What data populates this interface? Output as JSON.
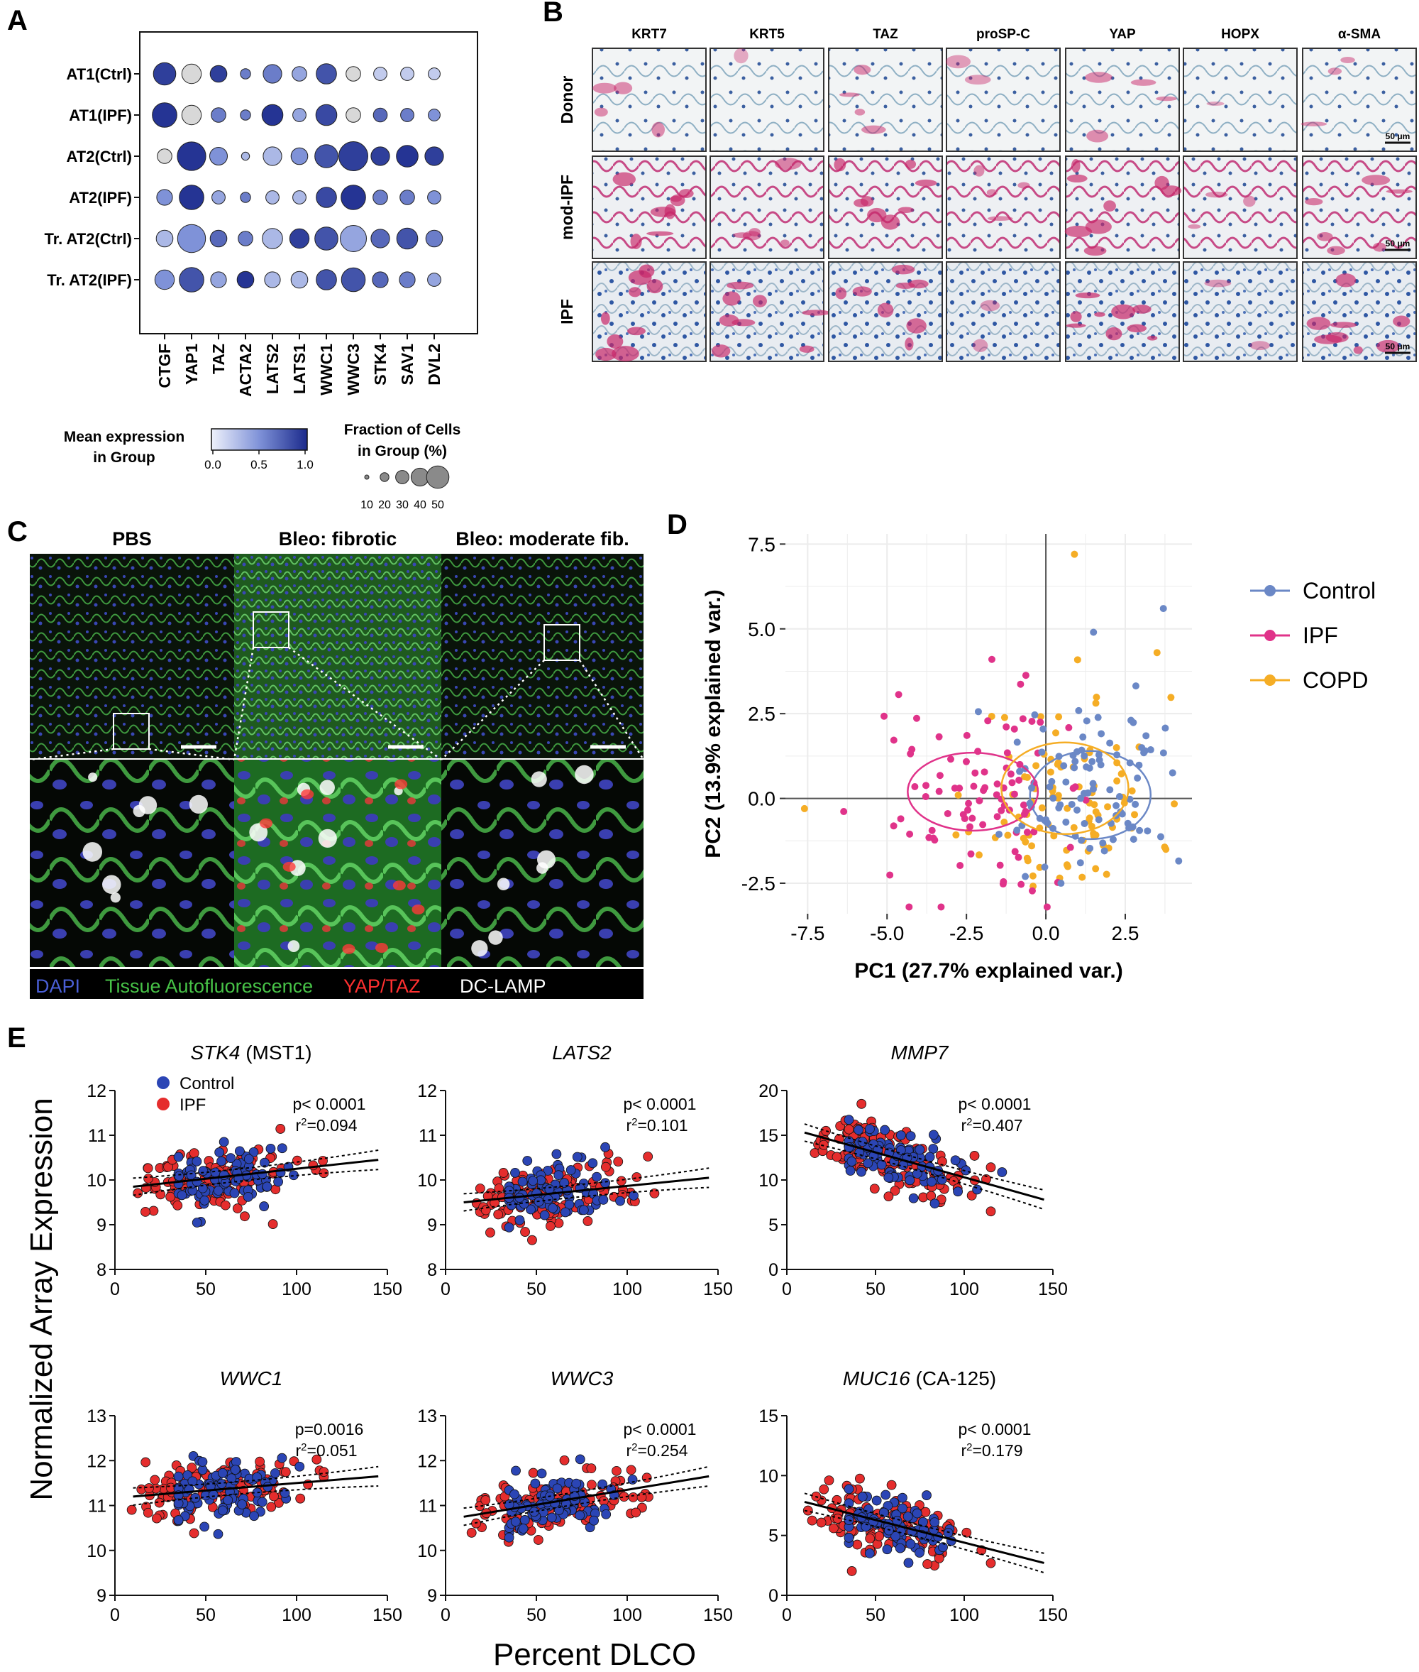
{
  "panels": {
    "a": {
      "label": "A",
      "groups": [
        "AT1(Ctrl)",
        "AT1(IPF)",
        "AT2(Ctrl)",
        "AT2(IPF)",
        "Tr. AT2(Ctrl)",
        "Tr. AT2(IPF)"
      ],
      "genes": [
        "CTGF",
        "YAP1",
        "TAZ",
        "ACTA2",
        "LATS2",
        "LATS1",
        "WWC1",
        "WWC3",
        "STK4",
        "SAV1",
        "DVL2"
      ],
      "mean_expression": [
        [
          0.9,
          0.1,
          0.9,
          0.6,
          0.6,
          0.4,
          0.8,
          0.1,
          0.2,
          0.2,
          0.2
        ],
        [
          0.95,
          0.1,
          0.6,
          0.6,
          0.95,
          0.4,
          0.85,
          0.1,
          0.7,
          0.6,
          0.5
        ],
        [
          0.1,
          0.95,
          0.5,
          0.3,
          0.3,
          0.5,
          0.8,
          0.9,
          0.9,
          0.95,
          0.9
        ],
        [
          0.5,
          0.95,
          0.4,
          0.6,
          0.3,
          0.3,
          0.85,
          0.95,
          0.6,
          0.6,
          0.5
        ],
        [
          0.3,
          0.5,
          0.7,
          0.6,
          0.3,
          0.9,
          0.8,
          0.4,
          0.7,
          0.8,
          0.6
        ],
        [
          0.5,
          0.8,
          0.4,
          0.95,
          0.3,
          0.3,
          0.8,
          0.8,
          0.7,
          0.6,
          0.4
        ]
      ],
      "fraction_pct": [
        [
          28,
          20,
          14,
          4,
          18,
          10,
          22,
          10,
          8,
          8,
          6
        ],
        [
          34,
          20,
          10,
          4,
          24,
          8,
          24,
          10,
          9,
          8,
          6
        ],
        [
          10,
          48,
          16,
          2,
          18,
          14,
          30,
          50,
          18,
          26,
          18
        ],
        [
          12,
          34,
          8,
          4,
          8,
          8,
          22,
          34,
          10,
          10,
          8
        ],
        [
          14,
          46,
          14,
          10,
          22,
          20,
          30,
          40,
          18,
          24,
          14
        ],
        [
          20,
          34,
          12,
          14,
          12,
          14,
          22,
          32,
          12,
          12,
          8
        ]
      ],
      "colorbar_title": [
        "Mean expression",
        "in Group"
      ],
      "colorbar_ticks": [
        "0.0",
        "0.5",
        "1.0"
      ],
      "size_legend_title": [
        "Fraction of Cells",
        "in Group (%)"
      ],
      "size_legend_ticks": [
        "10",
        "20",
        "30",
        "40",
        "50"
      ]
    },
    "b": {
      "label": "B",
      "stains": [
        "KRT7",
        "KRT5",
        "TAZ",
        "proSP-C",
        "YAP",
        "HOPX",
        "α-SMA"
      ],
      "rows": [
        "Donor",
        "mod-IPF",
        "IPF"
      ],
      "scale_bar": "50 μm"
    },
    "c": {
      "label": "C",
      "columns": [
        "PBS",
        "Bleo: fibrotic",
        "Bleo: moderate fib."
      ],
      "legend": [
        {
          "text": "DAPI",
          "color": "#4a5fd6"
        },
        {
          "text": "Tissue Autofluorescence",
          "color": "#47c247"
        },
        {
          "text": "YAP/TAZ",
          "color": "#ff3030"
        },
        {
          "text": "DC-LAMP",
          "color": "#ffffff"
        }
      ]
    },
    "d": {
      "label": "D",
      "xlabel": "PC1 (27.7% explained var.)",
      "ylabel": "PC2 (13.9% explained var.)",
      "xticks": [
        "-7.5",
        "-5.0",
        "-2.5",
        "0.0",
        "2.5"
      ],
      "yticks": [
        "-2.5",
        "0.0",
        "2.5",
        "5.0",
        "7.5"
      ],
      "legend": [
        {
          "name": "Control",
          "color": "#6b88c6"
        },
        {
          "name": "IPF",
          "color": "#e0338a"
        },
        {
          "name": "COPD",
          "color": "#f5ad25"
        }
      ]
    },
    "e": {
      "label": "E",
      "shared_ylabel": "Normalized Array Expression",
      "shared_xlabel": "Percent  DLCO",
      "legend": [
        {
          "name": "Control",
          "color": "#2b45b5"
        },
        {
          "name": "IPF",
          "color": "#e52d2d"
        }
      ],
      "subplots": [
        {
          "gene": "STK4",
          "suffix": " (MST1)",
          "p": "p< 0.0001",
          "r2": "=0.094",
          "ylim": [
            8,
            12
          ],
          "yticks": [
            "8",
            "9",
            "10",
            "11",
            "12"
          ]
        },
        {
          "gene": "LATS2",
          "suffix": "",
          "p": "p< 0.0001",
          "r2": "=0.101",
          "ylim": [
            8,
            12
          ],
          "yticks": [
            "8",
            "9",
            "10",
            "11",
            "12"
          ]
        },
        {
          "gene": "MMP7",
          "suffix": "",
          "p": "p< 0.0001",
          "r2": "=0.407",
          "ylim": [
            0,
            20
          ],
          "yticks": [
            "0",
            "5",
            "10",
            "15",
            "20"
          ]
        },
        {
          "gene": "WWC1",
          "suffix": "",
          "p": "p=0.0016",
          "r2": "=0.051",
          "ylim": [
            9,
            13
          ],
          "yticks": [
            "9",
            "10",
            "11",
            "12",
            "13"
          ]
        },
        {
          "gene": "WWC3",
          "suffix": "",
          "p": "p< 0.0001",
          "r2": "=0.254",
          "ylim": [
            9,
            13
          ],
          "yticks": [
            "9",
            "10",
            "11",
            "12",
            "13"
          ]
        },
        {
          "gene": "MUC16",
          "suffix": " (CA-125)",
          "p": "p< 0.0001",
          "r2": "=0.179",
          "ylim": [
            0,
            15
          ],
          "yticks": [
            "0",
            "5",
            "10",
            "15"
          ]
        }
      ],
      "xticks": [
        "0",
        "50",
        "100",
        "150"
      ]
    }
  },
  "chart_data": [
    {
      "type": "heatmap",
      "title": "",
      "rows": [
        "AT1(Ctrl)",
        "AT1(IPF)",
        "AT2(Ctrl)",
        "AT2(IPF)",
        "Tr. AT2(Ctrl)",
        "Tr. AT2(IPF)"
      ],
      "columns": [
        "CTGF",
        "YAP1",
        "TAZ",
        "ACTA2",
        "LATS2",
        "LATS1",
        "WWC1",
        "WWC3",
        "STK4",
        "SAV1",
        "DVL2"
      ],
      "color_value": "mean expression (0-1)",
      "size_value": "fraction of cells (%)"
    },
    {
      "type": "scatter",
      "xlabel": "PC1 (27.7% explained var.)",
      "ylabel": "PC2 (13.9% explained var.)",
      "xlim": [
        -8.2,
        4.6
      ],
      "ylim": [
        -3.4,
        7.8
      ],
      "series": [
        {
          "name": "Control",
          "center": [
            1.4,
            0.1
          ],
          "ellipse_radii": [
            3.8,
            2.6
          ]
        },
        {
          "name": "IPF",
          "center": [
            -2.3,
            0.2
          ],
          "ellipse_radii": [
            4.1,
            2.3
          ]
        },
        {
          "name": "COPD",
          "center": [
            0.6,
            0.3
          ],
          "ellipse_radii": [
            4.0,
            2.7
          ]
        }
      ]
    },
    {
      "type": "scatter",
      "xlabel": "Percent DLCO",
      "xlim": [
        0,
        150
      ],
      "subplots": [
        {
          "gene": "STK4",
          "regression": [
            [
              10,
              9.85
            ],
            [
              145,
              10.45
            ]
          ]
        },
        {
          "gene": "LATS2",
          "regression": [
            [
              10,
              9.5
            ],
            [
              145,
              10.05
            ]
          ]
        },
        {
          "gene": "MMP7",
          "regression": [
            [
              10,
              15.3
            ],
            [
              145,
              7.8
            ]
          ]
        },
        {
          "gene": "WWC1",
          "regression": [
            [
              10,
              11.2
            ],
            [
              145,
              11.65
            ]
          ]
        },
        {
          "gene": "WWC3",
          "regression": [
            [
              10,
              10.75
            ],
            [
              145,
              11.65
            ]
          ]
        },
        {
          "gene": "MUC16",
          "regression": [
            [
              10,
              7.8
            ],
            [
              145,
              2.7
            ]
          ]
        }
      ]
    }
  ]
}
